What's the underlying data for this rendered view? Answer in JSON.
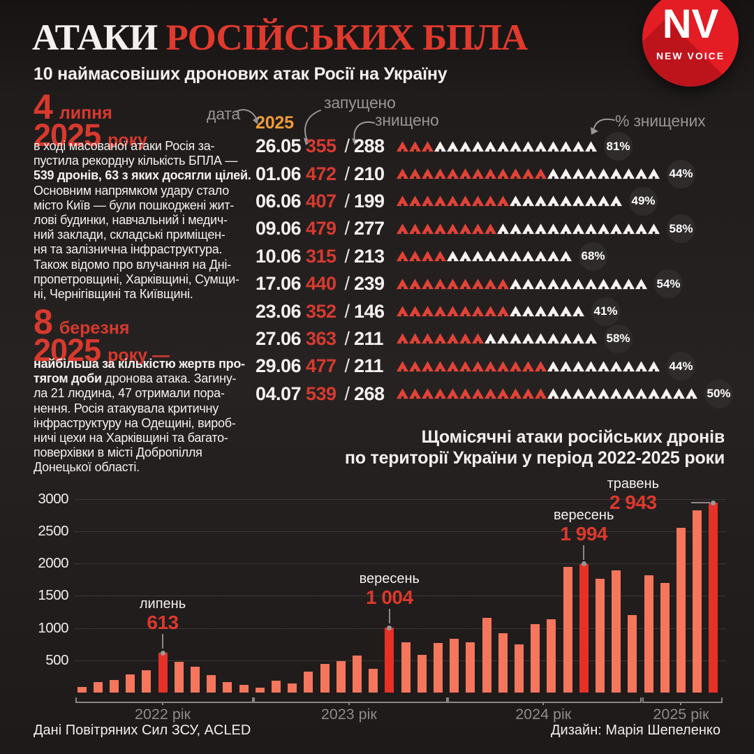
{
  "header": {
    "title_white": "АТАКИ",
    "title_red": "РОСІЙСЬКИХ БПЛА",
    "subtitle": "10 наймасовіших дронових атак Росії на Україну",
    "logo": {
      "monogram": "NV",
      "caption": "NEW VOICE",
      "color": "#e41c24"
    }
  },
  "events": [
    {
      "day": "4",
      "month": "липня",
      "year": "2025",
      "year_suffix": "року",
      "paragraph": [
        {
          "text": "в ході масованої атаки Росія за-\nпустила рекордну кількість БПЛА —\n",
          "bold": false
        },
        {
          "text": "539 дронів, 63 з яких досягли цілей.",
          "bold": true
        },
        {
          "text": "\nОсновним напрямком удару стало\nмісто Київ — були пошкоджені жит-\nлові будинки, навчальний і медич-\nний заклади, складські приміщен-\nня та залізнична інфраструктура.\nТакож відомо про влучання на Дні-\nпропетровщині, Харківщині, Сумщи-\nні, Чернігівщині та Київщині.",
          "bold": false
        }
      ]
    },
    {
      "day": "8",
      "month": "березня",
      "year": "2025",
      "year_suffix": "року —",
      "paragraph": [
        {
          "text": "найбільша за кількістю жертв про-\nтягом доби",
          "bold": true
        },
        {
          "text": " дронова атака. Загину-\nла 21 людина, 47 отримали пора-\nнення. Росія атакувала критичну\nінфраструктуру на Одещині, вироб-\nничі цехи на Харківщині та багато-\nповерхівки в місті Добропілля\nДонецької області.",
          "bold": false
        }
      ]
    }
  ],
  "chart_title": {
    "line1": "Щомісячні атаки російських дронів",
    "line2": "по території України у період 2022-2025 роки"
  },
  "chart_data": [
    {
      "type": "pictograph-table",
      "labels": {
        "date": "дата",
        "year": "2025",
        "launched": "запущено",
        "destroyed": "знищено",
        "percent": "% знищених",
        "separator": "/"
      },
      "icon": "drone-icon",
      "icon_colors": {
        "hit": "#e24337",
        "destroyed": "#f6f3f1"
      },
      "rows": [
        {
          "date": "26.05",
          "launched": "355",
          "destroyed": "288",
          "percent": "81%",
          "icons_hit": 3,
          "icons_destroyed": 13
        },
        {
          "date": "01.06",
          "launched": "472",
          "destroyed": "210",
          "percent": "44%",
          "icons_hit": 12,
          "icons_destroyed": 9
        },
        {
          "date": "06.06",
          "launched": "407",
          "destroyed": "199",
          "percent": "49%",
          "icons_hit": 9,
          "icons_destroyed": 9
        },
        {
          "date": "09.06",
          "launched": "479",
          "destroyed": "277",
          "percent": "58%",
          "icons_hit": 8,
          "icons_destroyed": 13
        },
        {
          "date": "10.06",
          "launched": "315",
          "destroyed": "213",
          "percent": "68%",
          "icons_hit": 4,
          "icons_destroyed": 10
        },
        {
          "date": "17.06",
          "launched": "440",
          "destroyed": "239",
          "percent": "54%",
          "icons_hit": 9,
          "icons_destroyed": 11
        },
        {
          "date": "23.06",
          "launched": "352",
          "destroyed": "146",
          "percent": "41%",
          "icons_hit": 9,
          "icons_destroyed": 6
        },
        {
          "date": "27.06",
          "launched": "363",
          "destroyed": "211",
          "percent": "58%",
          "icons_hit": 7,
          "icons_destroyed": 9
        },
        {
          "date": "29.06",
          "launched": "477",
          "destroyed": "211",
          "percent": "44%",
          "icons_hit": 12,
          "icons_destroyed": 9
        },
        {
          "date": "04.07",
          "launched": "539",
          "destroyed": "268",
          "percent": "50%",
          "icons_hit": 12,
          "icons_destroyed": 12
        }
      ]
    },
    {
      "type": "bar",
      "title": "Щомісячні атаки російських дронів по території України у період 2022-2025 роки",
      "ylim": [
        0,
        3000
      ],
      "yticks": [
        500,
        1000,
        1500,
        2000,
        2500,
        3000
      ],
      "grid": true,
      "legend": "none",
      "colors": {
        "bar": "#f5765c",
        "highlight": "#e73127"
      },
      "years": [
        {
          "label": "2022 рік",
          "values": [
            90,
            160,
            195,
            280,
            345,
            613,
            475,
            400,
            270,
            160,
            120
          ],
          "highlight_index": 5,
          "annotation": {
            "month": "липень",
            "value_label": "613",
            "bar_index": 5,
            "callout": "above"
          }
        },
        {
          "label": "2023 рік",
          "values": [
            75,
            180,
            145,
            320,
            440,
            490,
            570,
            370,
            1004,
            775,
            580,
            765
          ],
          "highlight_index": 8,
          "annotation": {
            "month": "вересень",
            "value_label": "1 004",
            "bar_index": 8,
            "callout": "above"
          }
        },
        {
          "label": "2024 рік",
          "values": [
            835,
            782,
            1160,
            923,
            749,
            1063,
            1140,
            1945,
            1994,
            1770,
            1900,
            1205
          ],
          "highlight_index": 8,
          "annotation": {
            "month": "вересень",
            "value_label": "1 994",
            "bar_index": 8,
            "callout": "above"
          }
        },
        {
          "label": "2025 рік",
          "values": [
            1815,
            1705,
            2555,
            2830,
            2943
          ],
          "highlight_index": 4,
          "annotation": {
            "month": "травень",
            "value_label": "2 943",
            "bar_index": 4,
            "callout": "side"
          }
        }
      ]
    }
  ],
  "footer": {
    "source": "Дані Повітряних Сил ЗСУ, ACLED",
    "credit": "Дизайн: Марія Шепеленко"
  }
}
